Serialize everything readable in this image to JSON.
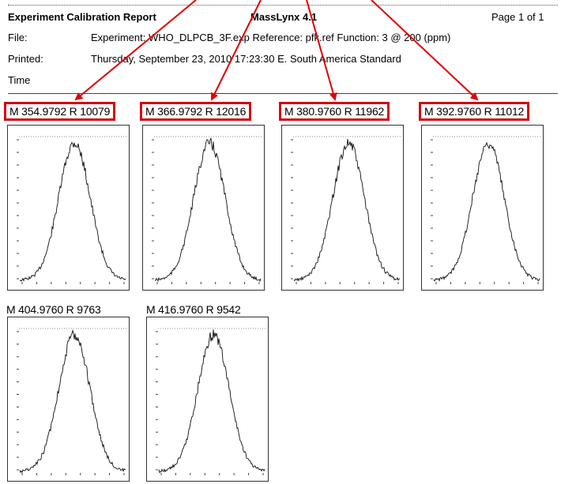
{
  "header": {
    "report_title": "Experiment Calibration Report",
    "software": "MassLynx 4.1",
    "page": "Page 1 of 1",
    "file_label": "File:",
    "file_value": "Experiment: WHO_DLPCB_3F.exp   Reference: pfk.ref   Function: 3 @ 200 (ppm)",
    "printed_label": "Printed:",
    "printed_value": "Thursday, September 23, 2010 17:23:30 E. South America Standard",
    "time_label": "Time"
  },
  "peaks": [
    {
      "label": "M 354.9792  R 10079",
      "mass": 354.9792,
      "resolution": 10079,
      "highlighted": true
    },
    {
      "label": "M 366.9792  R 12016",
      "mass": 366.9792,
      "resolution": 12016,
      "highlighted": true
    },
    {
      "label": "M 380.9760  R 11962",
      "mass": 380.976,
      "resolution": 11962,
      "highlighted": true
    },
    {
      "label": "M 392.9760  R 11012",
      "mass": 392.976,
      "resolution": 11012,
      "highlighted": true
    },
    {
      "label": "M 404.9760  R 9763",
      "mass": 404.976,
      "resolution": 9763,
      "highlighted": false
    },
    {
      "label": "M 416.9760  R 9542",
      "mass": 416.976,
      "resolution": 9542,
      "highlighted": false
    }
  ],
  "colors": {
    "highlight": "#d10a12",
    "arrow": "#e00000",
    "trace": "#111111"
  }
}
